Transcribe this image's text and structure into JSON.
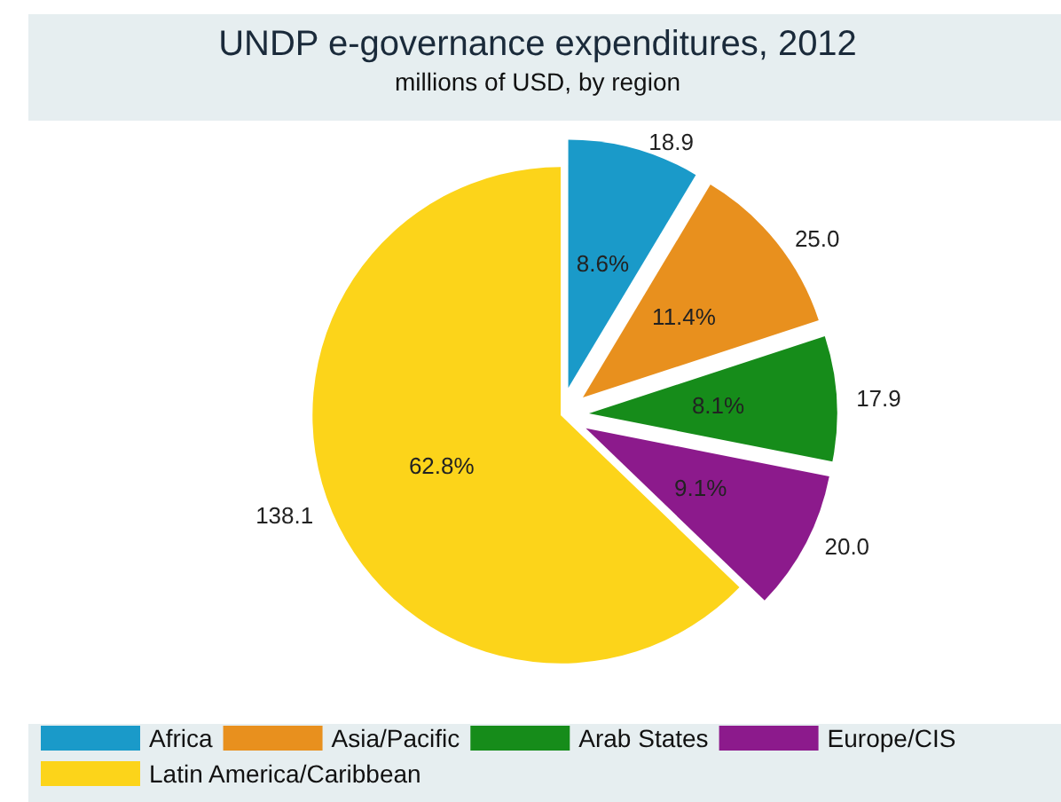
{
  "chart_data": {
    "type": "pie",
    "title": "UNDP e-governance expenditures, 2012",
    "subtitle": "millions of USD, by region",
    "categories": [
      "Africa",
      "Asia/Pacific",
      "Arab States",
      "Europe/CIS",
      "Latin America/Caribbean"
    ],
    "values": [
      18.9,
      25.0,
      17.9,
      20.0,
      138.1
    ],
    "value_labels": [
      "18.9",
      "25.0",
      "17.9",
      "20.0",
      "138.1"
    ],
    "annotations": [
      "8.6%",
      "11.4%",
      "8.1%",
      "9.1%",
      "62.8%"
    ],
    "colors": [
      "#1a9ac9",
      "#e8901e",
      "#168c1a",
      "#8c1a8c",
      "#fcd41a"
    ],
    "legend": "bottom"
  }
}
